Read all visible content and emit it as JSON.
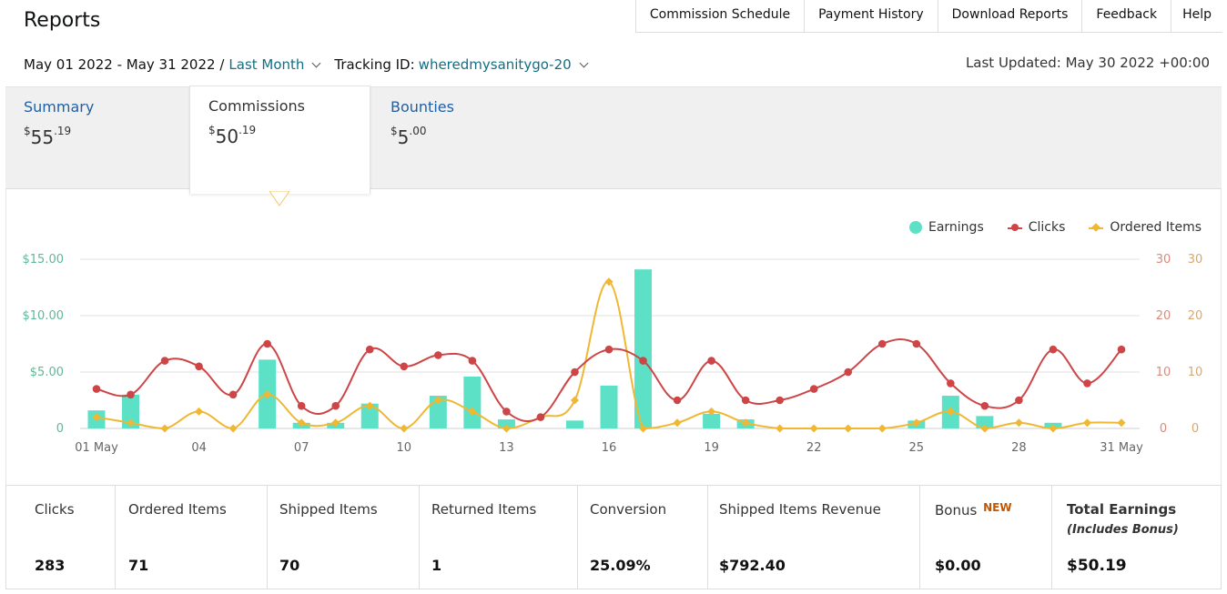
{
  "header": {
    "title": "Reports",
    "nav": [
      "Commission Schedule",
      "Payment History",
      "Download Reports",
      "Feedback",
      "Help"
    ]
  },
  "filters": {
    "date_range": "May 01 2022 - May 31 2022 /",
    "period": "Last Month",
    "tracking_label": "Tracking ID:",
    "tracking_id": "wheredmysanitygo-20",
    "last_updated": "Last Updated: May 30 2022 +00:00"
  },
  "tabs": [
    {
      "label": "Summary",
      "currency": "$",
      "whole": "55",
      "cents": ".19"
    },
    {
      "label": "Commissions",
      "currency": "$",
      "whole": "50",
      "cents": ".19"
    },
    {
      "label": "Bounties",
      "currency": "$",
      "whole": "5",
      "cents": ".00"
    }
  ],
  "colors": {
    "earnings": "#5ce1c6",
    "clicks": "#cd4547",
    "ordered_items": "#f0b732",
    "link": "#1f5fa6",
    "accent_new": "#c45500"
  },
  "chart_data": {
    "type": "bar",
    "legend": [
      "Earnings",
      "Clicks",
      "Ordered Items"
    ],
    "legend_position": "top-right",
    "x": [
      1,
      2,
      3,
      4,
      5,
      6,
      7,
      8,
      9,
      10,
      11,
      12,
      13,
      14,
      15,
      16,
      17,
      18,
      19,
      20,
      21,
      22,
      23,
      24,
      25,
      26,
      27,
      28,
      29,
      30,
      31
    ],
    "x_tick_labels": [
      "01 May",
      "04",
      "07",
      "10",
      "13",
      "16",
      "19",
      "22",
      "25",
      "28",
      "31 May"
    ],
    "x_tick_days": [
      1,
      4,
      7,
      10,
      13,
      16,
      19,
      22,
      25,
      28,
      31
    ],
    "y_left_ticks": [
      "0",
      "$5.00",
      "$10.00",
      "$15.00"
    ],
    "y_left_lim": [
      0,
      15
    ],
    "y_right_ticks_clicks": [
      "0",
      "10",
      "20",
      "30"
    ],
    "y_right_ticks_items": [
      "0",
      "10",
      "20",
      "30"
    ],
    "y_right_lim": [
      0,
      30
    ],
    "grid": true,
    "series": [
      {
        "name": "Earnings",
        "type": "bar",
        "values": [
          1.6,
          3.0,
          0,
          0,
          0,
          6.1,
          0.5,
          0.5,
          2.2,
          0,
          2.9,
          4.6,
          0.8,
          0,
          0.7,
          3.8,
          14.1,
          0,
          1.3,
          0.8,
          0,
          0,
          0,
          0,
          0.7,
          2.9,
          1.1,
          0,
          0.5,
          0,
          0
        ]
      },
      {
        "name": "Clicks",
        "type": "line",
        "values": [
          7,
          6,
          12,
          11,
          6,
          15,
          4,
          4,
          14,
          11,
          13,
          12,
          3,
          2,
          10,
          14,
          12,
          5,
          12,
          5,
          5,
          7,
          10,
          15,
          15,
          8,
          4,
          5,
          14,
          8,
          14
        ]
      },
      {
        "name": "Ordered Items",
        "type": "line",
        "values": [
          2,
          1,
          0,
          3,
          0,
          6,
          1,
          1,
          4,
          0,
          5,
          3,
          0,
          2,
          5,
          26,
          0,
          1,
          3,
          1,
          0,
          0,
          0,
          0,
          1,
          3,
          0,
          1,
          0,
          1,
          1
        ]
      }
    ]
  },
  "stats": [
    {
      "label": "Clicks",
      "value": "283"
    },
    {
      "label": "Ordered Items",
      "value": "71"
    },
    {
      "label": "Shipped Items",
      "value": "70"
    },
    {
      "label": "Returned Items",
      "value": "1"
    },
    {
      "label": "Conversion",
      "value": "25.09%"
    },
    {
      "label": "Shipped Items Revenue",
      "value": "$792.40"
    },
    {
      "label": "Bonus",
      "badge": "NEW",
      "value": "$0.00"
    },
    {
      "label": "Total Earnings",
      "sub": "(Includes Bonus)",
      "value": "$50.19"
    }
  ]
}
